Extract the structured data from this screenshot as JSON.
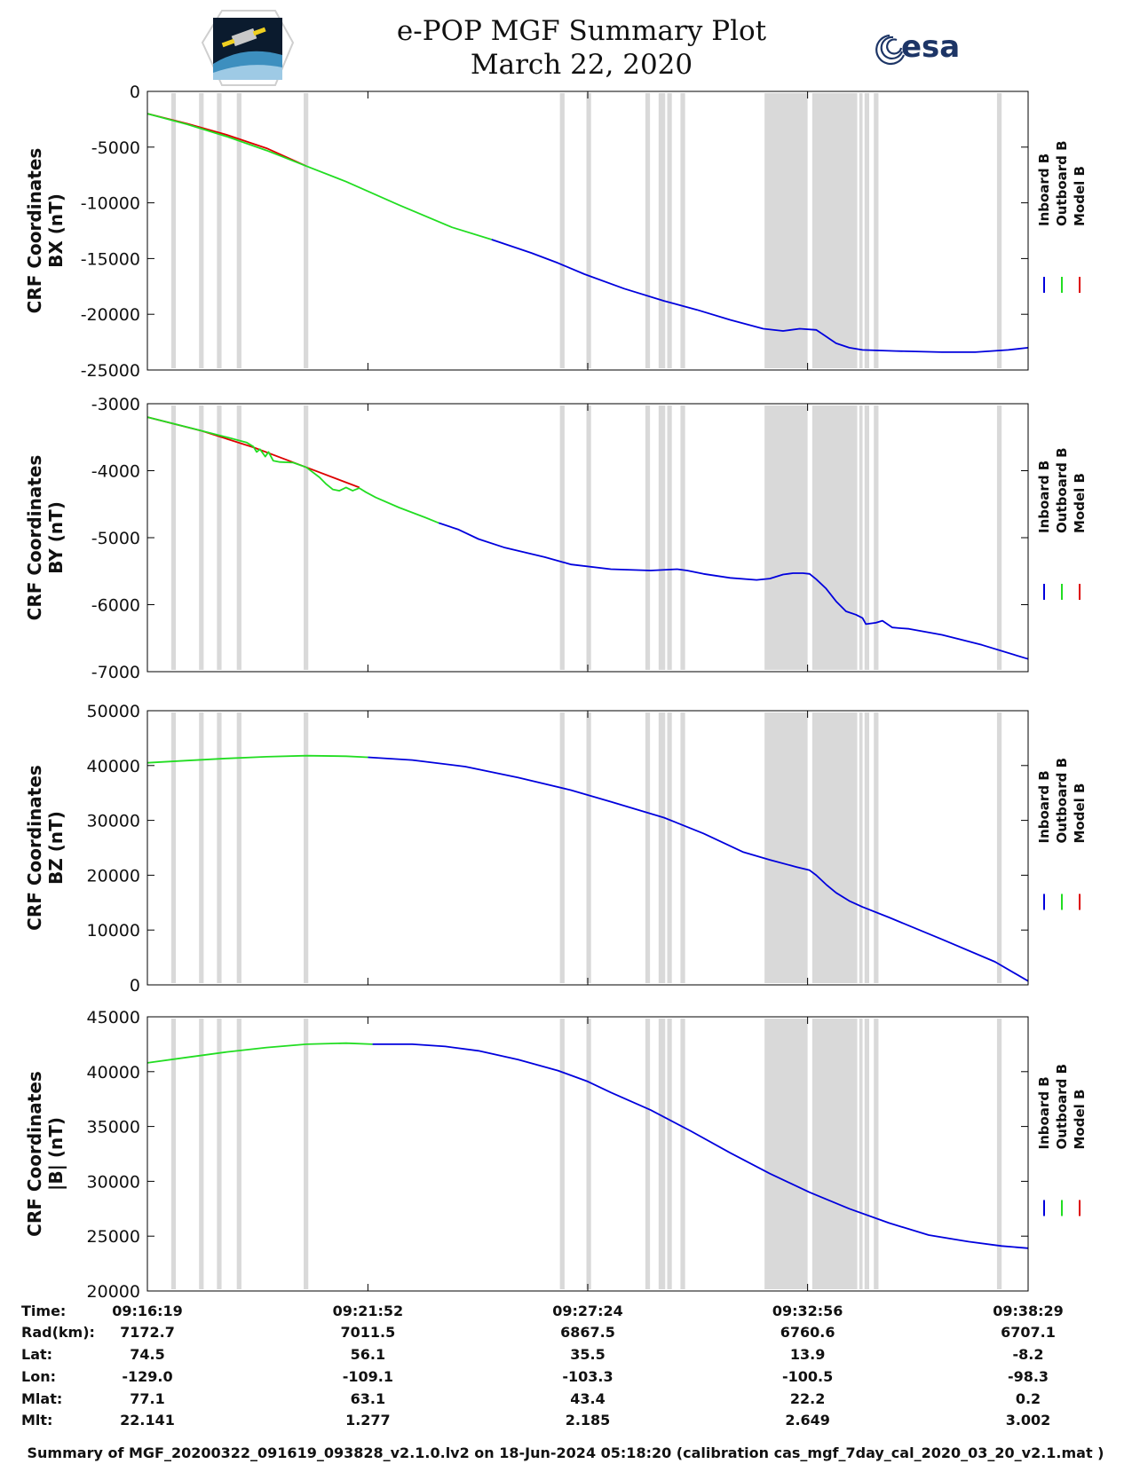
{
  "header": {
    "title": "e-POP MGF Summary Plot",
    "date": "March 22, 2020",
    "left_logo": "cassiope-mission-logo",
    "right_logo_text": "esa"
  },
  "colors": {
    "inboard": "#0000dd",
    "outboard": "#22dd22",
    "model": "#dd0000",
    "gap_shading": "#d9d9d9"
  },
  "chart_data": {
    "type": "line",
    "x_unit": "seconds since 09:16:19",
    "x_range": [
      0,
      1330
    ],
    "x_ticks": [
      {
        "t": 0,
        "label": "09:16:19"
      },
      {
        "t": 333,
        "label": "09:21:52"
      },
      {
        "t": 665,
        "label": "09:27:24"
      },
      {
        "t": 997,
        "label": "09:32:56"
      },
      {
        "t": 1330,
        "label": "09:38:29"
      }
    ],
    "data_gaps": [
      [
        36,
        43
      ],
      [
        78,
        85
      ],
      [
        105,
        112
      ],
      [
        135,
        142
      ],
      [
        236,
        243
      ],
      [
        623,
        630
      ],
      [
        663,
        670
      ],
      [
        752,
        759
      ],
      [
        772,
        782
      ],
      [
        785,
        792
      ],
      [
        805,
        812
      ],
      [
        932,
        997
      ],
      [
        1004,
        1072
      ],
      [
        1075,
        1080
      ],
      [
        1083,
        1090
      ],
      [
        1097,
        1104
      ],
      [
        1283,
        1290
      ]
    ],
    "legend": [
      "Inboard B",
      "Outboard B",
      "Model B"
    ],
    "panels": [
      {
        "id": "bx",
        "ylabel_line1": "CRF Coordinates",
        "ylabel_line2": "BX (nT)",
        "ylim": [
          -25000,
          0
        ],
        "yticks": [
          0,
          -5000,
          -10000,
          -15000,
          -20000,
          -25000
        ],
        "ytick_labels": [
          "0",
          "-5000",
          "-10000",
          "-15000",
          "-20000",
          "-25000"
        ],
        "series": [
          {
            "name": "Model B",
            "color": "model",
            "t": [
              0,
              60,
              120,
              180,
              240
            ],
            "v": [
              -2000,
              -2900,
              -3900,
              -5100,
              -6700
            ]
          },
          {
            "name": "Outboard B",
            "color": "outboard",
            "t": [
              0,
              60,
              120,
              180,
              240,
              300,
              380,
              460,
              520
            ],
            "v": [
              -2000,
              -2950,
              -4050,
              -5300,
              -6700,
              -8100,
              -10200,
              -12200,
              -13300
            ]
          },
          {
            "name": "Inboard B",
            "color": "inboard",
            "t": [
              520,
              580,
              620,
              660,
              720,
              780,
              830,
              880,
              930,
              960,
              985,
              1010,
              1025,
              1040,
              1060,
              1080,
              1130,
              1200,
              1250,
              1300,
              1330
            ],
            "v": [
              -13300,
              -14500,
              -15400,
              -16400,
              -17700,
              -18800,
              -19600,
              -20500,
              -21300,
              -21500,
              -21300,
              -21400,
              -22000,
              -22600,
              -23000,
              -23200,
              -23300,
              -23400,
              -23400,
              -23200,
              -23000
            ]
          }
        ]
      },
      {
        "id": "by",
        "ylabel_line1": "CRF Coordinates",
        "ylabel_line2": "BY (nT)",
        "ylim": [
          -7000,
          -3000
        ],
        "yticks": [
          -3000,
          -4000,
          -5000,
          -6000,
          -7000
        ],
        "ytick_labels": [
          "-3000",
          "-4000",
          "-5000",
          "-6000",
          "-7000"
        ],
        "series": [
          {
            "name": "Model B",
            "color": "model",
            "t": [
              0,
              80,
              160,
              240,
              320
            ],
            "v": [
              -3200,
              -3400,
              -3650,
              -3950,
              -4250
            ]
          },
          {
            "name": "Outboard B",
            "color": "outboard",
            "t": [
              0,
              60,
              120,
              150,
              160,
              165,
              170,
              178,
              183,
              190,
              200,
              220,
              240,
              260,
              270,
              280,
              290,
              300,
              310,
              320,
              330,
              345,
              380,
              420,
              440
            ],
            "v": [
              -3200,
              -3350,
              -3500,
              -3580,
              -3640,
              -3720,
              -3680,
              -3790,
              -3720,
              -3850,
              -3870,
              -3880,
              -3950,
              -4100,
              -4200,
              -4280,
              -4300,
              -4250,
              -4300,
              -4260,
              -4320,
              -4400,
              -4550,
              -4700,
              -4780
            ]
          },
          {
            "name": "Inboard B",
            "color": "inboard",
            "t": [
              440,
              470,
              500,
              540,
              600,
              640,
              700,
              760,
              800,
              815,
              840,
              880,
              920,
              940,
              960,
              975,
              990,
              1000,
              1010,
              1025,
              1040,
              1055,
              1070,
              1080,
              1085,
              1100,
              1110,
              1125,
              1135,
              1150,
              1200,
              1260,
              1330
            ],
            "v": [
              -4780,
              -4880,
              -5020,
              -5150,
              -5290,
              -5400,
              -5470,
              -5490,
              -5470,
              -5490,
              -5540,
              -5600,
              -5630,
              -5610,
              -5550,
              -5530,
              -5530,
              -5540,
              -5620,
              -5760,
              -5950,
              -6100,
              -6150,
              -6200,
              -6290,
              -6270,
              -6240,
              -6340,
              -6350,
              -6360,
              -6450,
              -6600,
              -6810
            ]
          }
        ]
      },
      {
        "id": "bz",
        "ylabel_line1": "CRF Coordinates",
        "ylabel_line2": "BZ (nT)",
        "ylim": [
          0,
          50000
        ],
        "yticks": [
          50000,
          40000,
          30000,
          20000,
          10000,
          0
        ],
        "ytick_labels": [
          "50000",
          "40000",
          "30000",
          "20000",
          "10000",
          "0"
        ],
        "series": [
          {
            "name": "Outboard B",
            "color": "outboard",
            "t": [
              0,
              60,
              120,
              180,
              240,
              300,
              333
            ],
            "v": [
              40500,
              40900,
              41300,
              41600,
              41800,
              41700,
              41500
            ]
          },
          {
            "name": "Inboard B",
            "color": "inboard",
            "t": [
              333,
              400,
              480,
              560,
              640,
              700,
              780,
              840,
              900,
              940,
              980,
              1000,
              1010,
              1025,
              1040,
              1060,
              1080,
              1120,
              1200,
              1280,
              1330
            ],
            "v": [
              41500,
              41000,
              39800,
              37800,
              35500,
              33400,
              30500,
              27600,
              24200,
              22800,
              21500,
              20900,
              20000,
              18300,
              16800,
              15300,
              14200,
              12300,
              8300,
              4200,
              700
            ]
          }
        ]
      },
      {
        "id": "bmag",
        "ylabel_line1": "CRF Coordinates",
        "ylabel_line2": "|B| (nT)",
        "ylim": [
          20000,
          45000
        ],
        "yticks": [
          45000,
          40000,
          35000,
          30000,
          25000,
          20000
        ],
        "ytick_labels": [
          "45000",
          "40000",
          "35000",
          "30000",
          "25000",
          "20000"
        ],
        "series": [
          {
            "name": "Outboard B",
            "color": "outboard",
            "t": [
              0,
              60,
              120,
              180,
              240,
              300,
              340
            ],
            "v": [
              40800,
              41300,
              41800,
              42200,
              42500,
              42600,
              42500
            ]
          },
          {
            "name": "Inboard B",
            "color": "inboard",
            "t": [
              340,
              400,
              450,
              500,
              560,
              620,
              665,
              700,
              760,
              820,
              880,
              940,
              1000,
              1060,
              1120,
              1180,
              1240,
              1290,
              1330
            ],
            "v": [
              42500,
              42500,
              42300,
              41900,
              41100,
              40100,
              39100,
              38100,
              36500,
              34600,
              32600,
              30700,
              29000,
              27500,
              26200,
              25100,
              24500,
              24100,
              23900
            ]
          }
        ]
      }
    ]
  },
  "orbit_info": {
    "row_labels": [
      "Time:",
      "Rad(km):",
      "Lat:",
      "Lon:",
      "Mlat:",
      "Mlt:"
    ],
    "columns": [
      [
        "09:16:19",
        "7172.7",
        "74.5",
        "-129.0",
        "77.1",
        "22.141"
      ],
      [
        "09:21:52",
        "7011.5",
        "56.1",
        "-109.1",
        "63.1",
        "1.277"
      ],
      [
        "09:27:24",
        "6867.5",
        "35.5",
        "-103.3",
        "43.4",
        "2.185"
      ],
      [
        "09:32:56",
        "6760.6",
        "13.9",
        "-100.5",
        "22.2",
        "2.649"
      ],
      [
        "09:38:29",
        "6707.1",
        "-8.2",
        "-98.3",
        "0.2",
        "3.002"
      ]
    ]
  },
  "footer": "Summary of MGF_20200322_091619_093828_v2.1.0.lv2 on 18-Jun-2024 05:18:20 (calibration cas_mgf_7day_cal_2020_03_20_v2.1.mat )"
}
